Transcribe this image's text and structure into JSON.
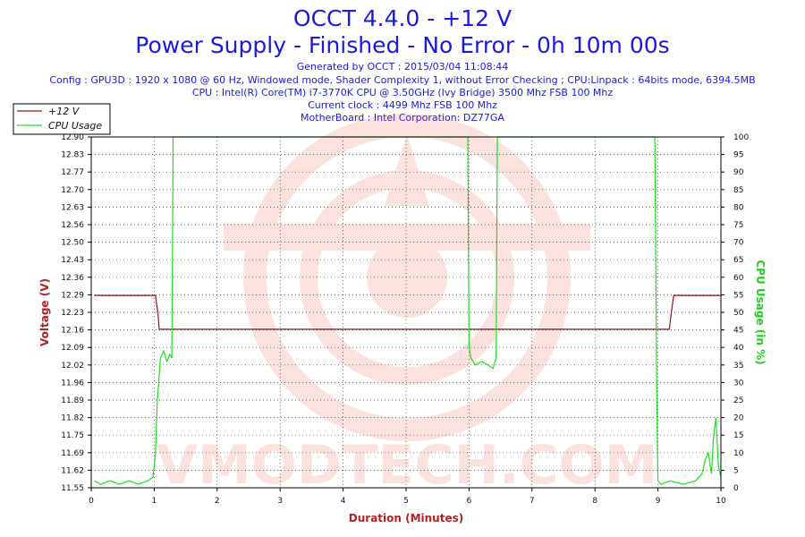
{
  "header": {
    "title": "OCCT 4.4.0 - +12 V",
    "subtitle": "Power Supply - Finished - No Error - 0h 10m 00s",
    "generated": "Generated by OCCT : 2015/03/04 11:08:44",
    "config": "Config : GPU3D : 1920 x 1080 @ 60 Hz, Windowed mode, Shader Complexity 1, without Error Checking ; CPU:Linpack : 64bits mode, 6394.5MB",
    "cpu": "CPU : Intel(R) Core(TM) i7-3770K CPU @ 3.50GHz (Ivy Bridge) 3500 Mhz FSB 100 Mhz",
    "clock": "Current clock : 4499 Mhz FSB 100 Mhz",
    "motherboard": "MotherBoard : Intel Corporation: DZ77GA"
  },
  "watermark": {
    "text": "VMODTECH.COM"
  },
  "colors": {
    "title": "#1a1adb",
    "voltage": "#8b1a1a",
    "cpu_usage": "#22dd22",
    "axis_left_title": "#b22222",
    "axis_right_title": "#22cc22",
    "axis_bottom_title": "#b22222",
    "watermark": "#e8503a"
  },
  "chart_data": {
    "type": "line",
    "xlabel": "Duration (Minutes)",
    "ylabel": "Voltage (V)",
    "y2label": "CPU Usage (in %)",
    "xlim": [
      0,
      10
    ],
    "ylim": [
      11.55,
      12.9
    ],
    "y2lim": [
      0,
      100
    ],
    "x_ticks": [
      "0",
      "1",
      "2",
      "3",
      "4",
      "5",
      "6",
      "7",
      "8",
      "9",
      "10"
    ],
    "y_ticks": [
      "11.55",
      "11.62",
      "11.69",
      "11.75",
      "11.82",
      "11.89",
      "11.96",
      "12.02",
      "12.09",
      "12.16",
      "12.23",
      "12.29",
      "12.36",
      "12.43",
      "12.50",
      "12.56",
      "12.63",
      "12.70",
      "12.77",
      "12.83",
      "12.90"
    ],
    "y2_ticks": [
      "0",
      "5",
      "10",
      "15",
      "20",
      "25",
      "30",
      "35",
      "40",
      "45",
      "50",
      "55",
      "60",
      "65",
      "70",
      "75",
      "80",
      "85",
      "90",
      "95",
      "100"
    ],
    "grid": true,
    "legend": "top-left",
    "series": [
      {
        "name": "+12 V",
        "axis": "left",
        "x": [
          0.05,
          1.02,
          1.06,
          1.08,
          6.0,
          6.02,
          6.45,
          6.47,
          9.18,
          9.21,
          9.25,
          10.0
        ],
        "y": [
          12.29,
          12.29,
          12.22,
          12.16,
          12.16,
          12.16,
          12.16,
          12.16,
          12.16,
          12.22,
          12.29,
          12.29
        ]
      },
      {
        "name": "CPU Usage",
        "axis": "right",
        "x": [
          0.05,
          0.15,
          0.3,
          0.45,
          0.6,
          0.75,
          0.9,
          0.98,
          1.02,
          1.05,
          1.1,
          1.15,
          1.2,
          1.25,
          1.28,
          1.3,
          1.5,
          3.0,
          5.0,
          5.98,
          6.0,
          6.03,
          6.1,
          6.2,
          6.3,
          6.38,
          6.43,
          6.45,
          6.5,
          7.5,
          8.5,
          8.95,
          8.98,
          9.0,
          9.05,
          9.2,
          9.4,
          9.6,
          9.7,
          9.75,
          9.8,
          9.85,
          9.88,
          9.92,
          9.96,
          10.0
        ],
        "y": [
          2,
          1,
          2,
          1,
          2,
          1,
          2,
          3,
          10,
          25,
          37,
          39,
          36,
          38,
          37,
          100,
          100,
          100,
          100,
          100,
          40,
          37,
          35,
          36,
          35,
          34,
          37,
          100,
          100,
          100,
          100,
          100,
          28,
          2,
          1,
          2,
          1,
          2,
          4,
          8,
          10,
          4,
          14,
          20,
          6,
          3
        ]
      }
    ]
  }
}
